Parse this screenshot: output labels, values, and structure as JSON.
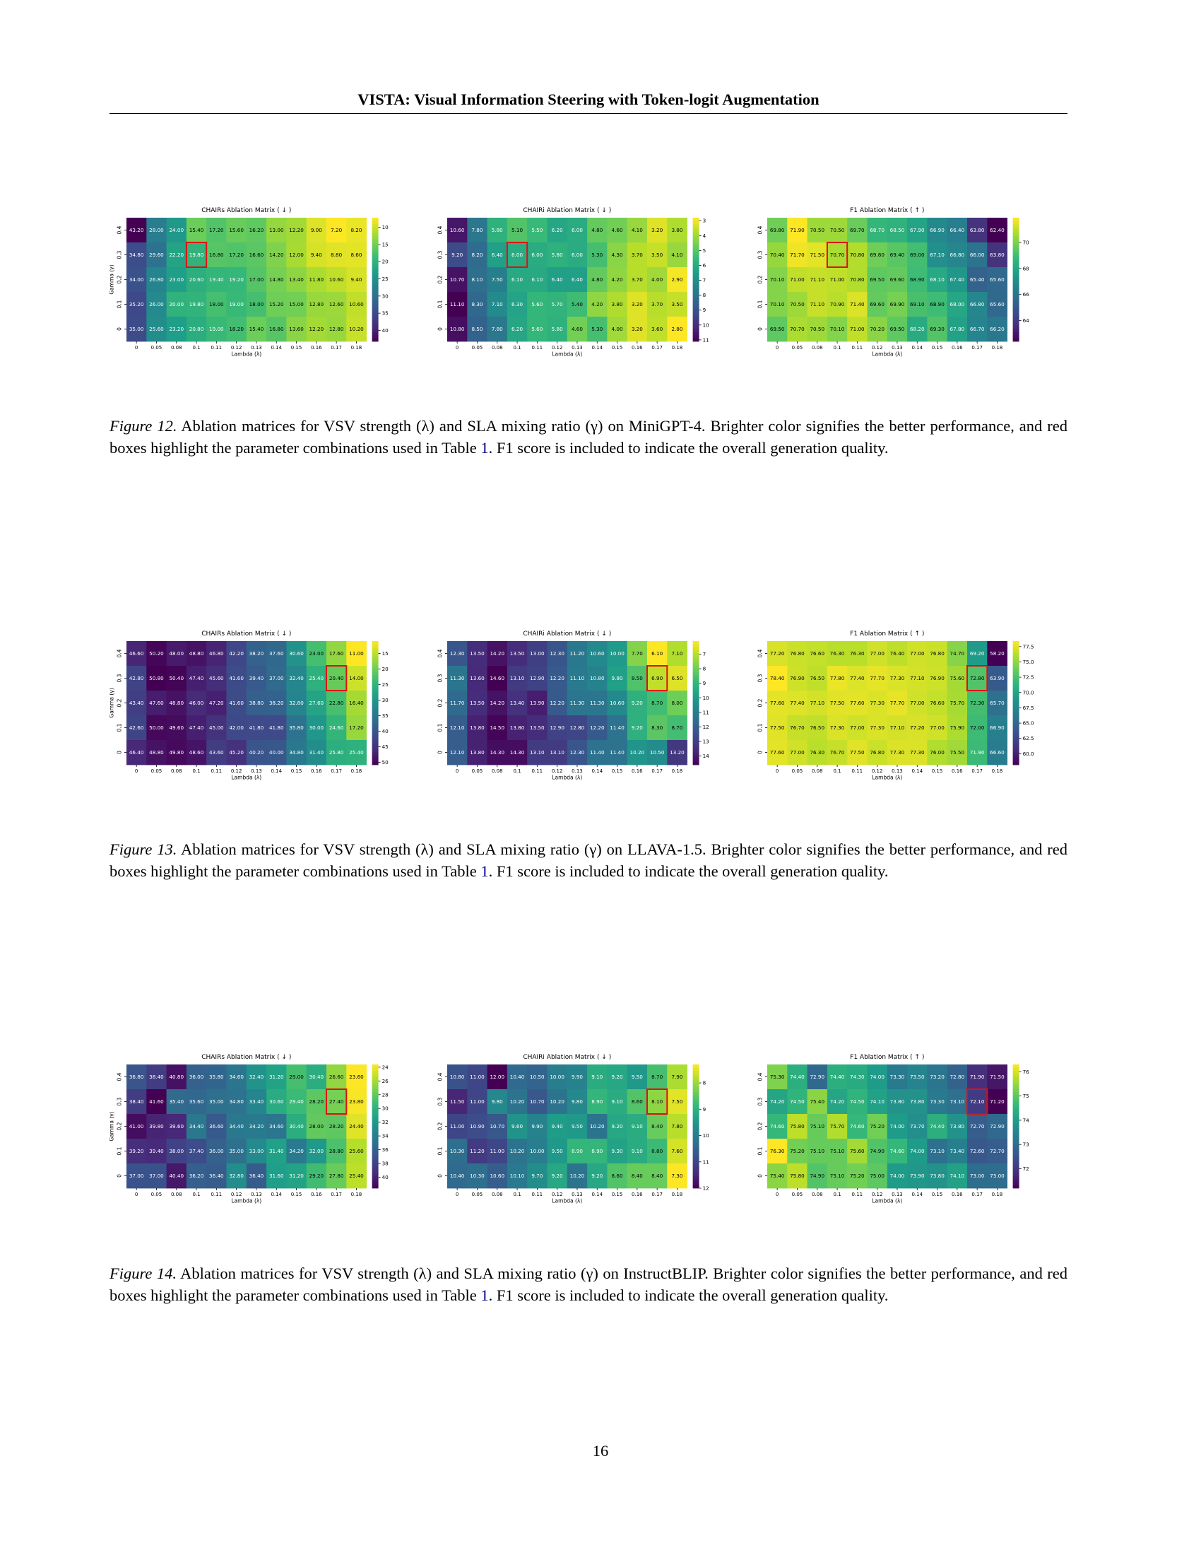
{
  "header": {
    "title": "VISTA: Visual Information Steering with Token-logit Augmentation"
  },
  "axis": {
    "xlabel": "Lambda (λ)",
    "ylabel": "Gamma (γ)",
    "lambda_ticks": [
      "0",
      "0.05",
      "0.08",
      "0.1",
      "0.11",
      "0.12",
      "0.13",
      "0.14",
      "0.15",
      "0.16",
      "0.17",
      "0.18"
    ],
    "gamma_ticks": [
      "0.4",
      "0.3",
      "0.2",
      "0.1",
      "0"
    ]
  },
  "figures": [
    {
      "id": "fig12",
      "caption": {
        "label": "Figure 12.",
        "part1": " Ablation matrices for VSV strength (λ) and SLA mixing ratio (γ) on MiniGPT-4. Brighter color signifies the better performance, and red boxes highlight the parameter combinations used in Table ",
        "ref": "1",
        "part2": ". F1 score is included to indicate the overall generation quality."
      },
      "chart_data": [
        {
          "type": "heatmap",
          "title": "CHAIRs Ablation Matrix ( ↓ )",
          "highlight": [
            1,
            3
          ],
          "reverse": true,
          "cbar_ticks": [
            "10",
            "15",
            "20",
            "25",
            "30",
            "35",
            "40"
          ],
          "vmin": 7.2,
          "vmax": 43.2,
          "values": [
            [
              43.2,
              28.0,
              24.0,
              15.4,
              17.2,
              15.6,
              16.2,
              13.0,
              12.2,
              9.0,
              7.2,
              8.2
            ],
            [
              34.8,
              29.6,
              22.2,
              19.8,
              16.8,
              17.2,
              16.6,
              14.2,
              12.0,
              9.4,
              8.8,
              8.6
            ],
            [
              34.0,
              26.8,
              23.0,
              20.6,
              19.4,
              19.2,
              17.0,
              14.8,
              13.4,
              11.8,
              10.6,
              9.4
            ],
            [
              35.2,
              26.0,
              20.0,
              19.8,
              18.0,
              19.0,
              18.0,
              15.2,
              15.0,
              12.8,
              12.6,
              10.6
            ],
            [
              35.0,
              25.6,
              23.2,
              20.8,
              19.0,
              18.2,
              15.4,
              16.8,
              13.6,
              12.2,
              12.8,
              10.2
            ]
          ]
        },
        {
          "type": "heatmap",
          "title": "CHAIRi Ablation Matrix ( ↓ )",
          "highlight": [
            1,
            3
          ],
          "reverse": true,
          "cbar_ticks": [
            "3",
            "4",
            "5",
            "6",
            "7",
            "8",
            "9",
            "10",
            "11"
          ],
          "vmin": 2.8,
          "vmax": 11.1,
          "values": [
            [
              10.6,
              7.8,
              5.8,
              5.1,
              5.5,
              6.2,
              6.0,
              4.8,
              4.6,
              4.1,
              3.2,
              3.8
            ],
            [
              9.2,
              8.2,
              6.4,
              6.0,
              6.0,
              5.8,
              6.0,
              5.3,
              4.3,
              3.7,
              3.5,
              4.1
            ],
            [
              10.7,
              8.1,
              7.5,
              6.1,
              6.1,
              6.4,
              6.4,
              4.8,
              4.2,
              3.7,
              4.0,
              2.9
            ],
            [
              11.1,
              8.3,
              7.1,
              6.3,
              5.6,
              5.7,
              5.4,
              4.2,
              3.8,
              3.2,
              3.7,
              3.5
            ],
            [
              10.8,
              8.5,
              7.8,
              6.2,
              5.6,
              5.8,
              4.6,
              5.3,
              4.0,
              3.2,
              3.6,
              2.8
            ]
          ]
        },
        {
          "type": "heatmap",
          "title": "F1 Ablation Matrix ( ↑ )",
          "highlight": [
            1,
            3
          ],
          "reverse": false,
          "cbar_ticks": [
            "64",
            "66",
            "68",
            "70"
          ],
          "vmin": 62.4,
          "vmax": 71.9,
          "values": [
            [
              69.8,
              71.9,
              70.5,
              70.5,
              69.7,
              68.7,
              68.5,
              67.9,
              66.9,
              66.4,
              63.8,
              62.4
            ],
            [
              70.4,
              71.7,
              71.5,
              70.7,
              70.8,
              69.8,
              69.4,
              69.0,
              67.1,
              66.8,
              66.0,
              63.8
            ],
            [
              70.1,
              71.0,
              71.1,
              71.0,
              70.8,
              69.5,
              69.6,
              68.9,
              68.1,
              67.4,
              65.4,
              65.6
            ],
            [
              70.1,
              70.5,
              71.1,
              70.9,
              71.4,
              69.6,
              69.9,
              69.1,
              68.9,
              68.0,
              66.8,
              65.6
            ],
            [
              69.5,
              70.7,
              70.5,
              70.1,
              71.0,
              70.2,
              69.5,
              68.2,
              69.3,
              67.8,
              66.7,
              66.2
            ]
          ]
        }
      ]
    },
    {
      "id": "fig13",
      "caption": {
        "label": "Figure 13.",
        "part1": " Ablation matrices for VSV strength (λ) and SLA mixing ratio (γ) on LLAVA-1.5. Brighter color signifies the better performance, and red boxes highlight the parameter combinations used in Table ",
        "ref": "1",
        "part2": ". F1 score is included to indicate the overall generation quality."
      },
      "chart_data": [
        {
          "type": "heatmap",
          "title": "CHAIRs Ablation Matrix ( ↓ )",
          "highlight": [
            1,
            10
          ],
          "reverse": true,
          "cbar_ticks": [
            "15",
            "20",
            "25",
            "30",
            "35",
            "40",
            "45",
            "50"
          ],
          "vmin": 11.0,
          "vmax": 50.8,
          "values": [
            [
              46.6,
              50.2,
              48.0,
              48.8,
              46.8,
              42.2,
              38.2,
              37.6,
              30.6,
              23.0,
              17.6,
              11.0
            ],
            [
              42.8,
              50.8,
              50.4,
              47.4,
              45.6,
              41.6,
              39.4,
              37.0,
              32.4,
              25.4,
              20.4,
              14.0
            ],
            [
              43.4,
              47.6,
              48.8,
              46.0,
              47.2,
              41.6,
              38.8,
              38.2,
              32.8,
              27.6,
              22.8,
              16.4
            ],
            [
              42.6,
              50.0,
              49.6,
              47.4,
              45.0,
              42.0,
              41.8,
              41.8,
              35.8,
              30.0,
              24.6,
              17.2
            ],
            [
              46.4,
              48.8,
              49.8,
              48.6,
              43.6,
              45.2,
              40.2,
              40.0,
              34.8,
              31.4,
              25.8,
              25.4
            ]
          ]
        },
        {
          "type": "heatmap",
          "title": "CHAIRi Ablation Matrix ( ↓ )",
          "highlight": [
            1,
            10
          ],
          "reverse": true,
          "cbar_ticks": [
            "7",
            "8",
            "9",
            "10",
            "11",
            "12",
            "13",
            "14"
          ],
          "vmin": 6.1,
          "vmax": 14.6,
          "values": [
            [
              12.3,
              13.5,
              14.2,
              13.5,
              13.0,
              12.3,
              11.2,
              10.6,
              10.0,
              7.7,
              6.1,
              7.1
            ],
            [
              11.3,
              13.6,
              14.6,
              13.1,
              12.9,
              12.2,
              11.1,
              10.8,
              9.8,
              8.5,
              6.9,
              6.5
            ],
            [
              11.7,
              13.5,
              14.2,
              13.4,
              13.9,
              12.2,
              11.3,
              11.3,
              10.6,
              9.2,
              8.7,
              8.0
            ],
            [
              12.1,
              13.8,
              14.5,
              13.8,
              13.5,
              12.9,
              12.8,
              12.2,
              11.4,
              9.2,
              8.3,
              8.7
            ],
            [
              12.1,
              13.8,
              14.3,
              14.3,
              13.1,
              13.1,
              12.3,
              11.4,
              11.4,
              10.2,
              10.5,
              13.2
            ]
          ]
        },
        {
          "type": "heatmap",
          "title": "F1 Ablation Matrix ( ↑ )",
          "highlight": [
            1,
            10
          ],
          "reverse": false,
          "cbar_ticks": [
            "60.0",
            "62.5",
            "65.0",
            "67.5",
            "70.0",
            "72.5",
            "75.0",
            "77.5"
          ],
          "vmin": 58.2,
          "vmax": 78.4,
          "values": [
            [
              77.2,
              76.8,
              76.6,
              76.3,
              76.3,
              77.0,
              76.4,
              77.0,
              76.8,
              74.7,
              69.2,
              58.2
            ],
            [
              78.4,
              76.9,
              76.5,
              77.8,
              77.4,
              77.7,
              77.3,
              77.1,
              76.9,
              75.6,
              72.8,
              63.9
            ],
            [
              77.6,
              77.4,
              77.1,
              77.5,
              77.6,
              77.3,
              77.7,
              77.0,
              76.6,
              75.7,
              72.3,
              65.7
            ],
            [
              77.5,
              76.7,
              76.5,
              77.3,
              77.0,
              77.3,
              77.1,
              77.2,
              77.0,
              75.9,
              72.0,
              66.9
            ],
            [
              77.6,
              77.0,
              76.3,
              76.7,
              77.5,
              76.8,
              77.3,
              77.3,
              76.0,
              75.5,
              71.9,
              66.6
            ]
          ]
        }
      ]
    },
    {
      "id": "fig14",
      "caption": {
        "label": "Figure 14.",
        "part1": " Ablation matrices for VSV strength (λ) and SLA mixing ratio (γ) on InstructBLIP. Brighter color signifies the better performance, and red boxes highlight the parameter combinations used in Table ",
        "ref": "1",
        "part2": ". F1 score is included to indicate the overall generation quality."
      },
      "chart_data": [
        {
          "type": "heatmap",
          "title": "CHAIRs Ablation Matrix ( ↓ )",
          "highlight": [
            1,
            10
          ],
          "reverse": true,
          "cbar_ticks": [
            "24",
            "26",
            "28",
            "30",
            "32",
            "34",
            "36",
            "38",
            "40"
          ],
          "vmin": 23.6,
          "vmax": 41.6,
          "values": [
            [
              36.8,
              38.4,
              40.8,
              36.0,
              35.8,
              34.6,
              32.4,
              31.2,
              29.0,
              30.4,
              26.6,
              23.6
            ],
            [
              38.4,
              41.6,
              35.4,
              35.6,
              35.0,
              34.8,
              33.4,
              30.6,
              29.4,
              28.2,
              27.4,
              23.8
            ],
            [
              41.0,
              39.8,
              39.6,
              34.4,
              36.6,
              34.4,
              34.2,
              34.6,
              30.4,
              28.0,
              28.2,
              24.4
            ],
            [
              39.2,
              39.4,
              38.0,
              37.4,
              36.0,
              35.0,
              33.0,
              31.4,
              34.2,
              32.0,
              28.8,
              25.6
            ],
            [
              37.0,
              37.0,
              40.4,
              36.2,
              36.4,
              32.8,
              36.4,
              31.6,
              31.2,
              29.2,
              27.8,
              25.4
            ]
          ]
        },
        {
          "type": "heatmap",
          "title": "CHAIRi Ablation Matrix ( ↓ )",
          "highlight": [
            1,
            10
          ],
          "reverse": true,
          "cbar_ticks": [
            "8",
            "9",
            "10",
            "11",
            "12"
          ],
          "vmin": 7.3,
          "vmax": 12.0,
          "values": [
            [
              10.8,
              11.0,
              12.0,
              10.4,
              10.5,
              10.0,
              9.9,
              9.1,
              9.2,
              9.5,
              8.7,
              7.9
            ],
            [
              11.5,
              11.0,
              9.8,
              10.2,
              10.7,
              10.2,
              9.8,
              8.9,
              9.1,
              8.6,
              8.1,
              7.5
            ],
            [
              11.0,
              10.9,
              10.7,
              9.6,
              9.9,
              9.4,
              9.5,
              10.2,
              9.2,
              9.1,
              8.4,
              7.8
            ],
            [
              10.3,
              11.2,
              11.0,
              10.2,
              10.0,
              9.5,
              8.9,
              8.9,
              9.3,
              9.1,
              8.8,
              7.6
            ],
            [
              10.4,
              10.3,
              10.6,
              10.1,
              9.7,
              9.2,
              10.2,
              9.2,
              8.6,
              8.4,
              8.4,
              7.3
            ]
          ]
        },
        {
          "type": "heatmap",
          "title": "F1 Ablation Matrix ( ↑ )",
          "highlight": [
            1,
            10
          ],
          "reverse": false,
          "cbar_ticks": [
            "72",
            "73",
            "74",
            "75",
            "76"
          ],
          "vmin": 71.2,
          "vmax": 76.3,
          "values": [
            [
              75.3,
              74.4,
              72.9,
              74.4,
              74.3,
              74.0,
              73.3,
              73.5,
              73.2,
              72.8,
              71.9,
              71.5
            ],
            [
              74.2,
              74.5,
              75.4,
              74.2,
              74.5,
              74.1,
              73.8,
              73.8,
              73.3,
              73.1,
              72.1,
              71.2
            ],
            [
              74.6,
              75.8,
              75.1,
              75.7,
              74.6,
              75.2,
              74.0,
              73.7,
              74.4,
              73.8,
              72.7,
              72.9
            ],
            [
              76.3,
              75.2,
              75.1,
              75.1,
              75.6,
              74.9,
              74.6,
              74.0,
              73.1,
              73.4,
              72.6,
              72.7
            ],
            [
              75.4,
              75.8,
              74.9,
              75.1,
              75.2,
              75.0,
              74.0,
              73.9,
              73.8,
              74.1,
              73.0,
              73.0
            ]
          ]
        }
      ]
    }
  ],
  "page_number": "16"
}
